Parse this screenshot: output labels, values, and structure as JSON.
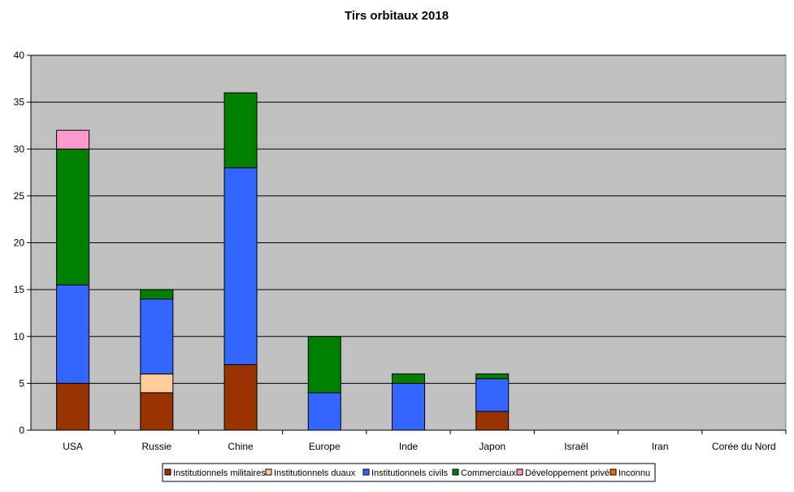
{
  "chart_data": {
    "type": "bar",
    "stacked": true,
    "title": "Tirs orbitaux 2018",
    "xlabel": "",
    "ylabel": "",
    "categories": [
      "USA",
      "Russie",
      "Chine",
      "Europe",
      "Inde",
      "Japon",
      "Israël",
      "Iran",
      "Corée du Nord"
    ],
    "series": [
      {
        "name": "Institutionnels militaires",
        "color": "#993300",
        "values": [
          5,
          4,
          7,
          0,
          0,
          2,
          0,
          0,
          0
        ]
      },
      {
        "name": "Institutionnels duaux",
        "color": "#FFCC99",
        "values": [
          0,
          2,
          0,
          0,
          0,
          0,
          0,
          0,
          0
        ]
      },
      {
        "name": "Institutionnels civils",
        "color": "#3366FF",
        "values": [
          10.5,
          8,
          21,
          4,
          5,
          3.5,
          0,
          0,
          0
        ]
      },
      {
        "name": "Commerciaux",
        "color": "#008000",
        "values": [
          14.5,
          1,
          8,
          6,
          1,
          0.5,
          0,
          0,
          0
        ]
      },
      {
        "name": "Développement privé",
        "color": "#FF99CC",
        "values": [
          2,
          0,
          0,
          0,
          0,
          0,
          0,
          0,
          0
        ]
      },
      {
        "name": "Inconnu",
        "color": "#FF6600",
        "values": [
          0,
          0,
          0,
          0,
          0,
          0,
          0,
          0,
          0
        ]
      }
    ],
    "ylim": [
      0,
      40
    ],
    "yticks": [
      0,
      5,
      10,
      15,
      20,
      25,
      30,
      35,
      40
    ],
    "grid": true,
    "plot_background": "#C0C0C0",
    "legend_position": "bottom"
  }
}
